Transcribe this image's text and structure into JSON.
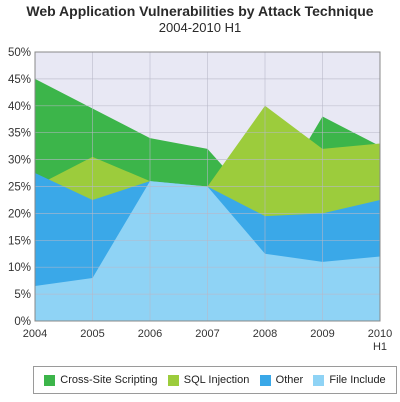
{
  "chart_data": {
    "type": "area",
    "title": "Web Application Vulnerabilities by Attack Technique",
    "subtitle": "2004-2010 H1",
    "x": [
      "2004",
      "2005",
      "2006",
      "2007",
      "2008",
      "2009",
      "2010 H1"
    ],
    "ylim": [
      0,
      50
    ],
    "y_ticks": [
      "0%",
      "5%",
      "10%",
      "15%",
      "20%",
      "25%",
      "30%",
      "35%",
      "40%",
      "45%",
      "50%"
    ],
    "grid": true,
    "legend_position": "bottom",
    "series": [
      {
        "name": "Cross-Site Scripting",
        "color": "#3cb54a",
        "values": [
          45.0,
          39.5,
          34.0,
          32.0,
          20.0,
          38.0,
          32.5
        ]
      },
      {
        "name": "SQL Injection",
        "color": "#9ccc3c",
        "values": [
          25.0,
          30.5,
          26.0,
          25.0,
          40.0,
          32.0,
          33.0
        ]
      },
      {
        "name": "Other",
        "color": "#3aa8e8",
        "values": [
          27.5,
          22.5,
          26.0,
          25.0,
          19.5,
          20.0,
          22.5
        ]
      },
      {
        "name": "File Include",
        "color": "#8fd3f5",
        "values": [
          6.5,
          8.0,
          26.0,
          25.0,
          12.5,
          11.0,
          12.0
        ]
      }
    ]
  }
}
